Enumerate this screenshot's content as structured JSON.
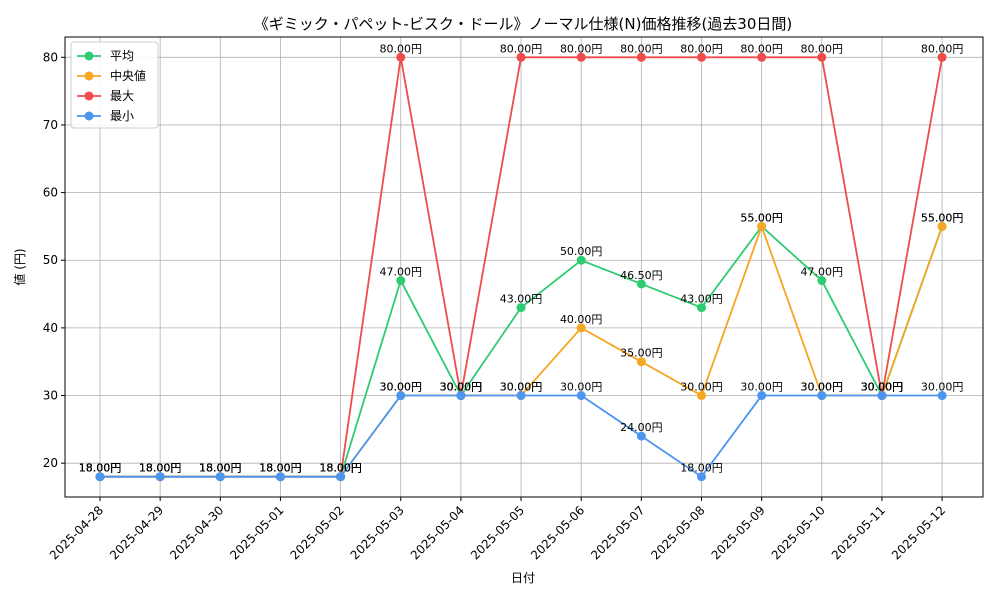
{
  "chart_data": {
    "type": "line",
    "title": "《ギミック・パペット-ビスク・ドール》ノーマル仕様(N)価格推移(過去30日間)",
    "xlabel": "日付",
    "ylabel": "値 (円)",
    "ylim": [
      15,
      83
    ],
    "yticks": [
      20,
      30,
      40,
      50,
      60,
      70,
      80
    ],
    "grid": true,
    "legend_position": "top-left",
    "value_suffix": "円",
    "categories": [
      "2025-04-28",
      "2025-04-29",
      "2025-04-30",
      "2025-05-01",
      "2025-05-02",
      "2025-05-03",
      "2025-05-04",
      "2025-05-05",
      "2025-05-06",
      "2025-05-07",
      "2025-05-08",
      "2025-05-09",
      "2025-05-10",
      "2025-05-11",
      "2025-05-12"
    ],
    "series": [
      {
        "name": "平均",
        "color": "#2ecc71",
        "values": [
          18,
          18,
          18,
          18,
          18,
          47,
          30,
          43,
          50,
          46.5,
          43,
          55,
          47,
          30,
          55
        ]
      },
      {
        "name": "中央値",
        "color": "#f5a623",
        "values": [
          18,
          18,
          18,
          18,
          18,
          30,
          30,
          30,
          40,
          35,
          30,
          55,
          30,
          30,
          55
        ]
      },
      {
        "name": "最大",
        "color": "#ef4b4b",
        "values": [
          18,
          18,
          18,
          18,
          18,
          80,
          30,
          80,
          80,
          80,
          80,
          80,
          80,
          30,
          80
        ]
      },
      {
        "name": "最小",
        "color": "#4c96f0",
        "values": [
          18,
          18,
          18,
          18,
          18,
          30,
          30,
          30,
          30,
          24,
          18,
          30,
          30,
          30,
          30
        ]
      }
    ]
  }
}
